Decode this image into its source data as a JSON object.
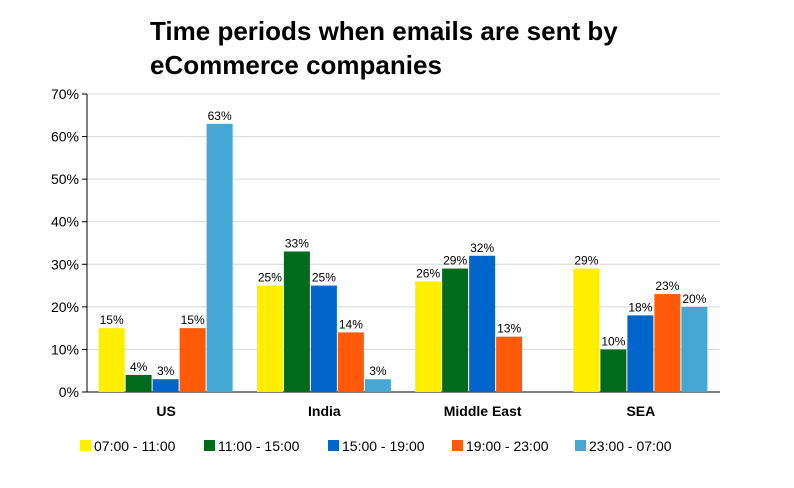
{
  "chart_data": {
    "type": "bar",
    "title_lines": [
      "Time periods when emails are sent by",
      "eCommerce companies"
    ],
    "categories": [
      "US",
      "India",
      "Middle East",
      "SEA"
    ],
    "series": [
      {
        "name": "07:00 - 11:00",
        "color": "#FFEE00",
        "values": [
          15,
          25,
          26,
          29
        ]
      },
      {
        "name": "11:00 - 15:00",
        "color": "#006B1B",
        "values": [
          4,
          33,
          29,
          10
        ]
      },
      {
        "name": "15:00 - 19:00",
        "color": "#0066CC",
        "values": [
          3,
          25,
          32,
          18
        ]
      },
      {
        "name": "19:00 - 23:00",
        "color": "#FF5A0A",
        "values": [
          15,
          14,
          13,
          23
        ]
      },
      {
        "name": "23:00 - 07:00",
        "color": "#45A8D4",
        "values": [
          63,
          3,
          0,
          20
        ]
      }
    ],
    "value_labels": [
      [
        "15%",
        "25%",
        "26%",
        "29%"
      ],
      [
        "4%",
        "33%",
        "29%",
        "10%"
      ],
      [
        "3%",
        "25%",
        "32%",
        "18%"
      ],
      [
        "15%",
        "14%",
        "13%",
        "23%"
      ],
      [
        "63%",
        "3%",
        "",
        "20%"
      ]
    ],
    "y_ticks": [
      0,
      10,
      20,
      30,
      40,
      50,
      60,
      70
    ],
    "y_tick_labels": [
      "0%",
      "10%",
      "20%",
      "30%",
      "40%",
      "50%",
      "60%",
      "70%"
    ],
    "ylim": [
      0,
      70
    ],
    "grid": true,
    "legend_position": "bottom"
  }
}
